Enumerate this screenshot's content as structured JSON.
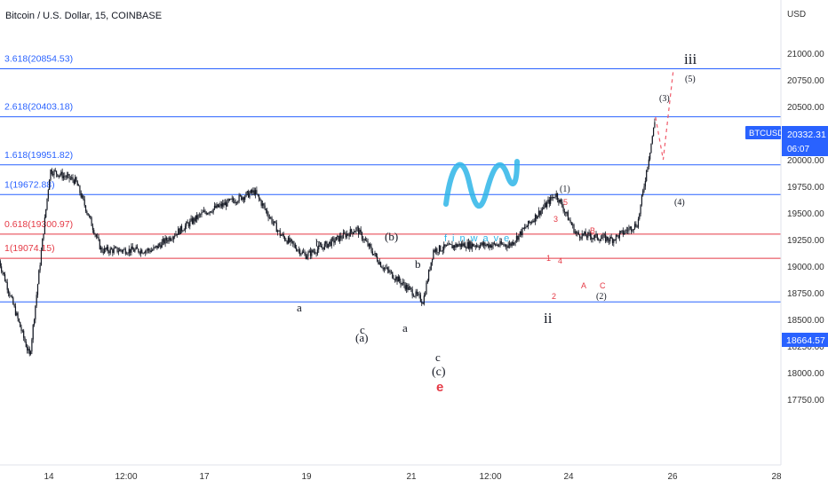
{
  "header": {
    "title": "Bitcoin / U.S. Dollar, 15, COINBASE"
  },
  "price_axis": {
    "currency": "USD",
    "ticks": [
      "21000.00",
      "20750.00",
      "20500.00",
      "20250.00",
      "20000.00",
      "19750.00",
      "19500.00",
      "19250.00",
      "19000.00",
      "18750.00",
      "18500.00",
      "18250.00",
      "18000.00",
      "17750.00"
    ]
  },
  "price_tags": {
    "symbol": "BTCUSD",
    "last_price": "20332.31",
    "countdown": "06:07",
    "support_level": "18664.57"
  },
  "time_axis": {
    "ticks": [
      "14",
      "12:00",
      "17",
      "19",
      "21",
      "12:00",
      "24",
      "26",
      "28"
    ]
  },
  "fib_levels": [
    {
      "label": "3.618(20854.53)",
      "price": 20854.53,
      "color": "#2962ff"
    },
    {
      "label": "2.618(20403.18)",
      "price": 20403.18,
      "color": "#2962ff"
    },
    {
      "label": "1.618(19951.82)",
      "price": 19951.82,
      "color": "#2962ff"
    },
    {
      "label": "1(19672.88)",
      "price": 19672.88,
      "color": "#2962ff"
    },
    {
      "label": "0.618(19300.97)",
      "price": 19300.97,
      "color": "#e53945"
    },
    {
      "label": "1(19074.15)",
      "price": 19074.15,
      "color": "#e53945"
    },
    {
      "label": "",
      "price": 18664.57,
      "color": "#2962ff"
    }
  ],
  "wave_labels": {
    "a1": "a",
    "b1": "b",
    "c1": "c",
    "A_paren": "(a)",
    "b_paren": "(b)",
    "a2": "a",
    "b2": "b",
    "c2": "c",
    "c_paren": "(c)",
    "e": "e",
    "ii": "ii",
    "w1": "(1)",
    "w2": "(2)",
    "w3": "(3)",
    "w4": "(4)",
    "w5": "(5)",
    "iii": "iii",
    "r1": "1",
    "r2": "2",
    "r3": "3",
    "r4": "4",
    "r5": "5",
    "rA": "A",
    "rB": "B",
    "rC": "C"
  },
  "watermark": {
    "brand": "finwave"
  },
  "colors": {
    "blue": "#2962ff",
    "red": "#e53945",
    "candle": "#131722",
    "projection": "#f05a6a",
    "watermark": "#2eb5e8"
  },
  "chart_data": {
    "type": "candlestick",
    "title": "Bitcoin / U.S. Dollar, 15, COINBASE",
    "ylim": [
      17750,
      21250
    ],
    "key_points": [
      {
        "x": "13",
        "y": 19050
      },
      {
        "x": "13.6",
        "y": 18150
      },
      {
        "x": "14",
        "y": 19900
      },
      {
        "x": "14.5",
        "y": 19800
      },
      {
        "x": "15",
        "y": 19150
      },
      {
        "x": "16",
        "y": 19150
      },
      {
        "x": "17",
        "y": 19500
      },
      {
        "x": "18",
        "y": 19700
      },
      {
        "x": "18.5",
        "y": 19300
      },
      {
        "x": "19",
        "y": 19100
      },
      {
        "x": "20",
        "y": 19350
      },
      {
        "x": "20.5",
        "y": 19000
      },
      {
        "x": "21.3",
        "y": 18670
      },
      {
        "x": "21.5",
        "y": 19150
      },
      {
        "x": "22",
        "y": 19200
      },
      {
        "x": "23",
        "y": 19200
      },
      {
        "x": "23.9",
        "y": 19680
      },
      {
        "x": "24.3",
        "y": 19300
      },
      {
        "x": "25",
        "y": 19250
      },
      {
        "x": "25.5",
        "y": 19400
      },
      {
        "x": "25.85",
        "y": 20400
      }
    ],
    "projection": [
      {
        "x": "25.85",
        "y": 20400
      },
      {
        "x": "26",
        "y": 20000
      },
      {
        "x": "26.2",
        "y": 20850
      }
    ]
  }
}
